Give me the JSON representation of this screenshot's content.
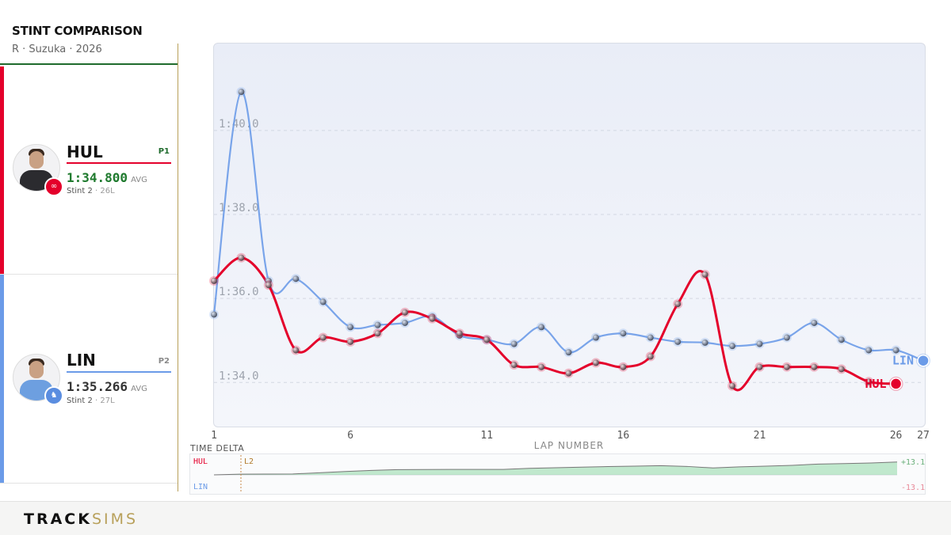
{
  "header": {
    "title": "STINT COMPARISON",
    "subtitle": "R · Suzuka · 2026"
  },
  "drivers": [
    {
      "code": "HUL",
      "position": "P1",
      "avg_time": "1:34.800",
      "avg_label": "AVG",
      "stint": "Stint 2",
      "laps": "· 26L",
      "color": "#e4002b",
      "team_color": "#e4002b",
      "team_icon": "audi-rings-icon"
    },
    {
      "code": "LIN",
      "position": "P2",
      "avg_time": "1:35.266",
      "avg_label": "AVG",
      "stint": "Stint 2",
      "laps": "· 27L",
      "color": "#6b9be8",
      "team_color": "#5a8de0",
      "team_icon": "racing-bulls-icon"
    }
  ],
  "chart_data": {
    "type": "line",
    "xlabel": "LAP NUMBER",
    "ylabel": "",
    "x_ticks": [
      "1",
      "6",
      "11",
      "16",
      "21",
      "26",
      "27"
    ],
    "y_ticks": [
      "1:34.0",
      "1:36.0",
      "1:38.0",
      "1:40.0"
    ],
    "ylim_seconds": [
      92.8,
      101.9
    ],
    "xlim": [
      1,
      27
    ],
    "grid": true,
    "series": [
      {
        "name": "HUL",
        "color": "#e4002b",
        "x": [
          1,
          2,
          3,
          4,
          5,
          6,
          7,
          8,
          9,
          10,
          11,
          12,
          13,
          14,
          15,
          16,
          17,
          18,
          19,
          20,
          21,
          22,
          23,
          24,
          25,
          26
        ],
        "lap_times_s": [
          96.25,
          96.8,
          96.15,
          94.6,
          94.9,
          94.8,
          95.0,
          95.5,
          95.35,
          95.0,
          94.85,
          94.25,
          94.2,
          94.05,
          94.3,
          94.2,
          94.45,
          95.7,
          96.4,
          93.75,
          94.2,
          94.2,
          94.2,
          94.15,
          93.85,
          93.8
        ]
      },
      {
        "name": "LIN",
        "color": "#6b9be8",
        "x": [
          1,
          2,
          3,
          4,
          5,
          6,
          7,
          8,
          9,
          10,
          11,
          12,
          13,
          14,
          15,
          16,
          17,
          18,
          19,
          20,
          21,
          22,
          23,
          24,
          25,
          26,
          27
        ],
        "lap_times_s": [
          95.45,
          100.75,
          96.25,
          96.3,
          95.75,
          95.15,
          95.2,
          95.25,
          95.4,
          94.95,
          94.85,
          94.75,
          95.15,
          94.55,
          94.9,
          95.0,
          94.9,
          94.8,
          94.78,
          94.7,
          94.75,
          94.9,
          95.25,
          94.85,
          94.6,
          94.6,
          94.35
        ]
      }
    ],
    "end_labels": [
      "HUL",
      "LIN"
    ]
  },
  "delta": {
    "title": "TIME DELTA",
    "top_driver": "HUL",
    "bottom_driver": "LIN",
    "marker": "L2",
    "max_label": "+13.1",
    "min_label": "-13.1",
    "cumulative_s": [
      0,
      0.55,
      0.65,
      0.75,
      1.7,
      2.8,
      3.65,
      4.3,
      4.45,
      4.5,
      4.5,
      4.5,
      5.4,
      5.9,
      6.4,
      6.9,
      7.2,
      7.6,
      7.0,
      5.7,
      6.65,
      7.2,
      7.9,
      8.9,
      9.3,
      9.85,
      10.65
    ]
  },
  "footer": {
    "brand_bold": "TRACK",
    "brand_light": "SIMS"
  }
}
